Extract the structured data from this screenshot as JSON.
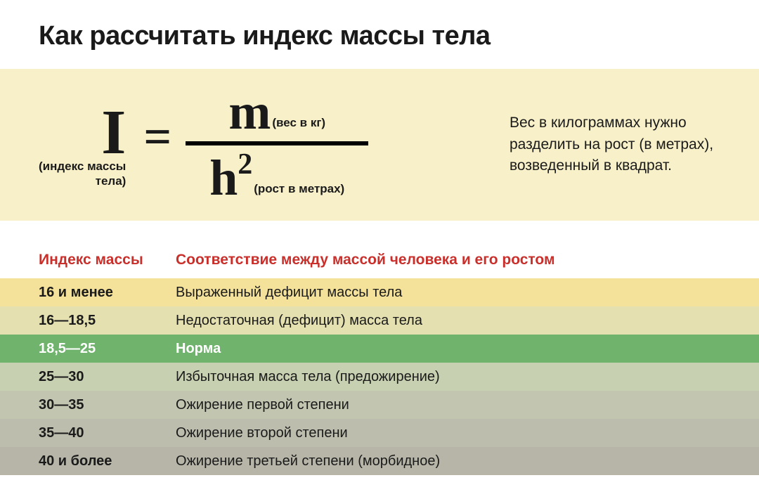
{
  "title": "Как рассчитать индекс массы тела",
  "formula": {
    "I_symbol": "I",
    "I_caption_line1": "(индекс массы",
    "I_caption_line2": "тела)",
    "eq": "=",
    "m_symbol": "m",
    "m_caption": "(вес в кг)",
    "h_symbol": "h",
    "h_sup": "2",
    "h_caption": "(рост в метрах)"
  },
  "explanation": "Вес в килограммах нужно разделить на рост (в метрах), возведенный в квадрат.",
  "table": {
    "header_col1": "Индекс массы",
    "header_col2": "Соответствие между массой человека и его ростом",
    "rows": [
      {
        "range": "16 и менее",
        "desc": "Выраженный дефицит массы тела",
        "bg": "#f4e29a",
        "normal": false
      },
      {
        "range": "16—18,5",
        "desc": "Недостаточная (дефицит) масса тела",
        "bg": "#e4e0b0",
        "normal": false
      },
      {
        "range": "18,5—25",
        "desc": "Норма",
        "bg": "#6fb36c",
        "normal": true
      },
      {
        "range": "25—30",
        "desc": "Избыточная масса тела (предожирение)",
        "bg": "#c7d0b0",
        "normal": false
      },
      {
        "range": "30—35",
        "desc": "Ожирение первой степени",
        "bg": "#c2c5b0",
        "normal": false
      },
      {
        "range": "35—40",
        "desc": "Ожирение второй степени",
        "bg": "#bdbdae",
        "normal": false
      },
      {
        "range": "40 и более",
        "desc": "Ожирение третьей степени (морбидное)",
        "bg": "#b7b5a8",
        "normal": false
      }
    ]
  },
  "colors": {
    "formula_band_bg": "#f8f0c8",
    "header_text": "#c9302c",
    "text": "#1a1a1a"
  }
}
